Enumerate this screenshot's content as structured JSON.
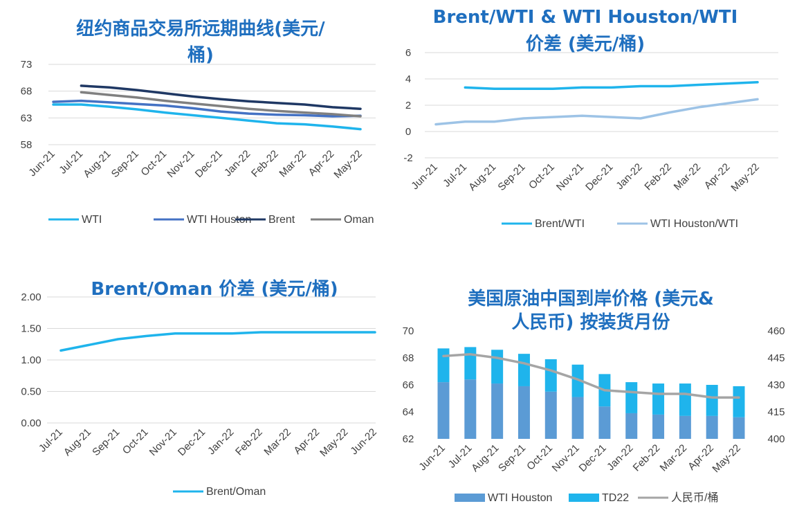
{
  "colors": {
    "title": "#1f6fbf",
    "wti": "#1fb4ec",
    "wti_houston": "#4472c4",
    "brent": "#1f3864",
    "oman": "#808080",
    "brent_wti": "#1fb4ec",
    "houston_wti": "#9dc3e6",
    "brent_oman": "#1fb4ec",
    "bar_houston": "#5b9bd5",
    "bar_td22": "#1fb4ec",
    "rmb": "#a5a5a5",
    "grid": "#d9d9d9"
  },
  "chart_data": [
    {
      "id": "c1",
      "type": "line",
      "title_lines": [
        "纽约商品交易所远期曲线(美元/",
        "桶)"
      ],
      "categories": [
        "Jun-21",
        "Jul-21",
        "Aug-21",
        "Sep-21",
        "Oct-21",
        "Nov-21",
        "Dec-21",
        "Jan-22",
        "Feb-22",
        "Mar-22",
        "Apr-22",
        "May-22"
      ],
      "yticks": [
        "73",
        "68",
        "63",
        "58"
      ],
      "ylim": [
        58,
        73
      ],
      "grid": true,
      "legend_position": "bottom",
      "series": [
        {
          "name": "WTI",
          "color_key": "wti",
          "values": [
            65.5,
            65.5,
            65.1,
            64.6,
            64.0,
            63.5,
            63.0,
            62.5,
            62.0,
            61.8,
            61.4,
            60.9
          ]
        },
        {
          "name": "WTI Houston",
          "color_key": "wti_houston",
          "values": [
            66.0,
            66.2,
            65.9,
            65.6,
            65.3,
            64.8,
            64.2,
            63.8,
            63.6,
            63.5,
            63.3,
            63.4
          ]
        },
        {
          "name": "Brent",
          "color_key": "brent",
          "values": [
            null,
            69.0,
            68.7,
            68.2,
            67.6,
            67.0,
            66.5,
            66.1,
            65.8,
            65.5,
            65.0,
            64.7
          ]
        },
        {
          "name": "Oman",
          "color_key": "oman",
          "values": [
            null,
            67.8,
            67.3,
            66.8,
            66.2,
            65.7,
            65.2,
            64.7,
            64.3,
            64.0,
            63.7,
            63.3
          ]
        }
      ]
    },
    {
      "id": "c2",
      "type": "line",
      "title_lines": [
        "Brent/WTI & WTI Houston/WTI",
        "价差 (美元/桶)"
      ],
      "categories": [
        "Jun-21",
        "Jul-21",
        "Aug-21",
        "Sep-21",
        "Oct-21",
        "Nov-21",
        "Dec-21",
        "Jan-22",
        "Feb-22",
        "Mar-22",
        "Apr-22",
        "May-22"
      ],
      "yticks": [
        "6",
        "4",
        "2",
        "0",
        "-2"
      ],
      "ylim": [
        -2,
        6
      ],
      "grid": true,
      "legend_position": "bottom",
      "series": [
        {
          "name": "Brent/WTI",
          "color_key": "brent_wti",
          "values": [
            null,
            3.35,
            3.25,
            3.25,
            3.25,
            3.35,
            3.35,
            3.45,
            3.45,
            3.55,
            3.65,
            3.75
          ]
        },
        {
          "name": "WTI Houston/WTI",
          "color_key": "houston_wti",
          "values": [
            0.55,
            0.75,
            0.75,
            1.0,
            1.1,
            1.2,
            1.1,
            1.0,
            1.45,
            1.85,
            2.15,
            2.45
          ]
        }
      ]
    },
    {
      "id": "c3",
      "type": "line",
      "title_lines": [
        "Brent/Oman 价差 (美元/桶)"
      ],
      "categories": [
        "Jul-21",
        "Aug-21",
        "Sep-21",
        "Oct-21",
        "Nov-21",
        "Dec-21",
        "Jan-22",
        "Feb-22",
        "Mar-22",
        "Apr-22",
        "May-22",
        "Jun-22"
      ],
      "yticks": [
        "2.00",
        "1.50",
        "1.00",
        "0.50",
        "0.00"
      ],
      "ylim": [
        0,
        2
      ],
      "grid": true,
      "legend_position": "bottom",
      "series": [
        {
          "name": "Brent/Oman",
          "color_key": "brent_oman",
          "values": [
            1.15,
            1.24,
            1.33,
            1.38,
            1.42,
            1.42,
            1.42,
            1.44,
            1.44,
            1.44,
            1.44,
            1.44
          ]
        }
      ]
    },
    {
      "id": "c4",
      "type": "bar",
      "title_lines": [
        "美国原油中国到岸价格 (美元&",
        "人民币) 按装货月份"
      ],
      "categories": [
        "Jun-21",
        "Jul-21",
        "Aug-21",
        "Sep-21",
        "Oct-21",
        "Nov-21",
        "Dec-21",
        "Jan-22",
        "Feb-22",
        "Mar-22",
        "Apr-22",
        "May-22"
      ],
      "yticks": [
        "70",
        "68",
        "66",
        "64",
        "62"
      ],
      "y2ticks": [
        "460",
        "445",
        "430",
        "415",
        "400"
      ],
      "ylim": [
        62,
        70
      ],
      "y2lim": [
        400,
        460
      ],
      "grid": false,
      "legend_position": "bottom",
      "series": [
        {
          "name": "WTI Houston",
          "color_key": "bar_houston",
          "kind": "bar",
          "values": [
            66.2,
            66.4,
            66.1,
            65.9,
            65.5,
            65.1,
            64.4,
            63.9,
            63.8,
            63.7,
            63.7,
            63.6
          ]
        },
        {
          "name": "TD22",
          "color_key": "bar_td22",
          "kind": "bar",
          "values": [
            2.5,
            2.4,
            2.5,
            2.4,
            2.4,
            2.4,
            2.4,
            2.3,
            2.3,
            2.4,
            2.3,
            2.3
          ]
        },
        {
          "name": "人民币/桶",
          "color_key": "rmb",
          "kind": "line",
          "axis": "right",
          "values": [
            446,
            447,
            445,
            442,
            438,
            433,
            427,
            426,
            425,
            425,
            423,
            423
          ]
        }
      ]
    }
  ]
}
